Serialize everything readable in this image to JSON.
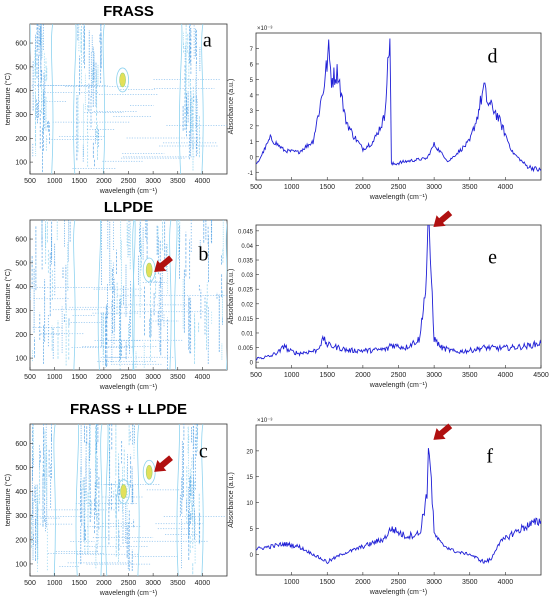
{
  "figure_title": "",
  "colors": {
    "contour_main": "#5aa6e6",
    "contour_light": "#8fd3f0",
    "contour_hot": "#e3e05a",
    "spectrum_line": "#1f1fd6",
    "arrow": "#b01010"
  },
  "chart_data": [
    {
      "id": "a",
      "type": "heatmap",
      "title": "FRASS",
      "panel_letter": "a",
      "xlabel": "wavelength (cm⁻¹)",
      "ylabel": "temperature (°C)",
      "xlim": [
        500,
        4500
      ],
      "ylim": [
        50,
        680
      ],
      "xticks": [
        500,
        1000,
        1500,
        2000,
        2500,
        3000,
        3500,
        4000
      ],
      "yticks": [
        100,
        200,
        300,
        400,
        500,
        600
      ],
      "bands": [
        [
          520,
          900
        ],
        [
          1450,
          1950
        ],
        [
          3600,
          3950
        ]
      ],
      "hotspots": [
        [
          2380,
          445
        ]
      ],
      "arrow": null
    },
    {
      "id": "d",
      "type": "line",
      "title": "",
      "panel_letter": "d",
      "xlabel": "wavelength (cm⁻¹)",
      "ylabel": "Absorbance (a.u.)",
      "scale_label": "×10⁻³",
      "xlim": [
        500,
        4500
      ],
      "ylim": [
        -1.5,
        8
      ],
      "xticks": [
        500,
        1000,
        1500,
        2000,
        2500,
        3000,
        3500,
        4000
      ],
      "yticks": [
        -1,
        0,
        1,
        2,
        3,
        4,
        5,
        6,
        7
      ],
      "x": [
        500,
        700,
        900,
        1100,
        1300,
        1450,
        1520,
        1560,
        1650,
        1750,
        1850,
        2000,
        2150,
        2300,
        2350,
        2380,
        2400,
        2600,
        2900,
        3000,
        3200,
        3500,
        3600,
        3700,
        3750,
        3850,
        3950,
        4100,
        4300,
        4500
      ],
      "y": [
        -0.6,
        1.2,
        0.4,
        0.3,
        1.0,
        4.5,
        6.8,
        5.0,
        5.5,
        2.5,
        1.5,
        0.5,
        1.0,
        2.5,
        5.8,
        7.8,
        -0.5,
        -0.3,
        -0.1,
        0.8,
        -0.3,
        1.0,
        2.5,
        4.5,
        3.5,
        3.0,
        2.0,
        0.3,
        -0.6,
        -0.9
      ],
      "arrow": null
    },
    {
      "id": "b",
      "type": "heatmap",
      "title": "LLPDE",
      "panel_letter": "b",
      "xlabel": "wavelength (cm⁻¹)",
      "ylabel": "temperature (°C)",
      "xlim": [
        500,
        4500
      ],
      "ylim": [
        50,
        680
      ],
      "xticks": [
        500,
        1000,
        1500,
        2000,
        2500,
        3000,
        3500,
        4000
      ],
      "yticks": [
        100,
        200,
        300,
        400,
        500,
        600
      ],
      "bands": [
        [
          500,
          1350
        ],
        [
          1950,
          2550
        ],
        [
          2650,
          3300
        ],
        [
          3500,
          4450
        ]
      ],
      "hotspots": [
        [
          2920,
          470
        ]
      ],
      "arrow": [
        2920,
        470
      ]
    },
    {
      "id": "e",
      "type": "line",
      "title": "",
      "panel_letter": "e",
      "xlabel": "wavelength (cm⁻¹)",
      "ylabel": "Absorbance (a.u.)",
      "scale_label": "",
      "xlim": [
        500,
        4500
      ],
      "ylim": [
        -0.002,
        0.047
      ],
      "xticks": [
        500,
        1000,
        1500,
        2000,
        2500,
        3000,
        3500,
        4000,
        4500
      ],
      "yticks": [
        0,
        0.005,
        0.01,
        0.015,
        0.02,
        0.025,
        0.03,
        0.035,
        0.04,
        0.045
      ],
      "x": [
        450,
        700,
        850,
        900,
        950,
        1100,
        1350,
        1450,
        1500,
        1800,
        2100,
        2350,
        2380,
        2600,
        2800,
        2850,
        2880,
        2920,
        2960,
        3000,
        3100,
        3300,
        3500,
        3700,
        3900,
        4100,
        4300,
        4500
      ],
      "y": [
        0.001,
        0.002,
        0.004,
        0.006,
        0.004,
        0.003,
        0.004,
        0.008,
        0.006,
        0.004,
        0.004,
        0.0045,
        0.006,
        0.005,
        0.008,
        0.02,
        0.024,
        0.047,
        0.03,
        0.008,
        0.005,
        0.0035,
        0.004,
        0.005,
        0.0048,
        0.005,
        0.0055,
        0.0065
      ],
      "arrow": [
        2920,
        0.047
      ]
    },
    {
      "id": "c",
      "type": "heatmap",
      "title": "FRASS + LLPDE",
      "panel_letter": "c",
      "xlabel": "wavelength (cm⁻¹)",
      "ylabel": "temperature (°C)",
      "xlim": [
        500,
        4500
      ],
      "ylim": [
        50,
        680
      ],
      "xticks": [
        500,
        1000,
        1500,
        2000,
        2500,
        3000,
        3500,
        4000
      ],
      "yticks": [
        100,
        200,
        300,
        400,
        500,
        600
      ],
      "bands": [
        [
          500,
          950
        ],
        [
          1500,
          1900
        ],
        [
          2100,
          2650
        ],
        [
          3550,
          3950
        ]
      ],
      "hotspots": [
        [
          2400,
          400
        ],
        [
          2920,
          480
        ]
      ],
      "arrow": [
        2920,
        490
      ]
    },
    {
      "id": "f",
      "type": "line",
      "title": "",
      "panel_letter": "f",
      "xlabel": "wavelength (cm⁻¹)",
      "ylabel": "Absorbance (a.u.)",
      "scale_label": "×10⁻³",
      "xlim": [
        500,
        4500
      ],
      "ylim": [
        -4,
        25
      ],
      "xticks": [
        1000,
        1500,
        2000,
        2500,
        3000,
        3500,
        4000
      ],
      "yticks": [
        0,
        5,
        10,
        15,
        20
      ],
      "x": [
        500,
        700,
        900,
        1100,
        1300,
        1500,
        1700,
        1900,
        2100,
        2300,
        2400,
        2600,
        2800,
        2850,
        2900,
        2920,
        2960,
        3000,
        3100,
        3300,
        3500,
        3700,
        3800,
        3900,
        4100,
        4300,
        4500
      ],
      "y": [
        1,
        1.5,
        2,
        1.5,
        0,
        -1.5,
        0,
        1,
        2,
        3,
        5,
        3.5,
        4,
        8,
        11,
        22.5,
        14,
        4,
        2,
        0.5,
        0,
        -1.5,
        -1,
        2,
        4,
        5.5,
        6.5
      ],
      "arrow": [
        2920,
        22.5
      ]
    }
  ]
}
